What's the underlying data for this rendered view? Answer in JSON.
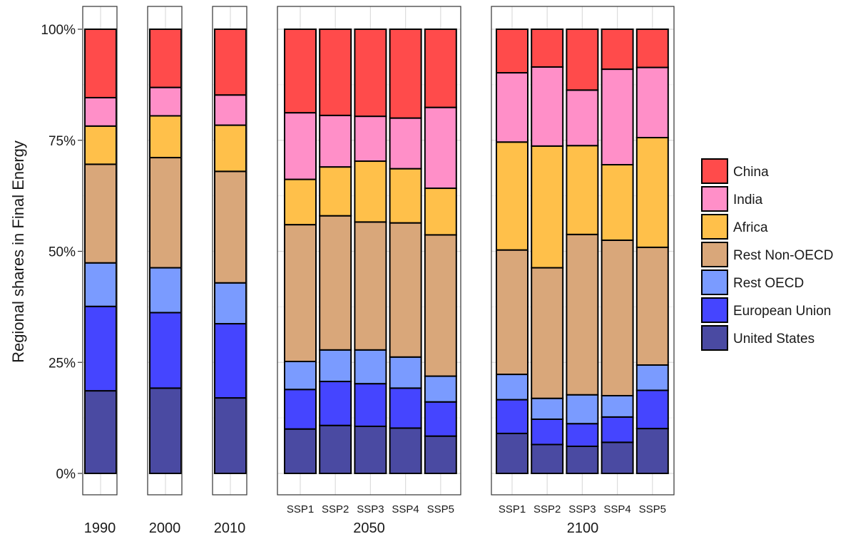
{
  "chart_data": {
    "type": "bar",
    "stacked": true,
    "percent_stacked": true,
    "ylabel": "Regional shares in Final Energy",
    "yticks": [
      "0%",
      "25%",
      "50%",
      "75%",
      "100%"
    ],
    "ylim": [
      0,
      100
    ],
    "grid": true,
    "legend_position": "right",
    "regions": [
      {
        "name": "China",
        "color": "#ff4b4b"
      },
      {
        "name": "India",
        "color": "#ff8fc8"
      },
      {
        "name": "Africa",
        "color": "#ffc04a"
      },
      {
        "name": "Rest Non-OECD",
        "color": "#d9a77a"
      },
      {
        "name": "Rest OECD",
        "color": "#7a9bff"
      },
      {
        "name": "European Union",
        "color": "#4545ff"
      },
      {
        "name": "United States",
        "color": "#4a4aa2"
      }
    ],
    "panels": [
      {
        "label": "1990",
        "bars": [
          {
            "label": "",
            "values": [
              15.4,
              6.4,
              8.6,
              22.2,
              9.8,
              19.0,
              18.6
            ]
          }
        ]
      },
      {
        "label": "2000",
        "bars": [
          {
            "label": "",
            "values": [
              13.1,
              6.4,
              9.4,
              24.8,
              10.1,
              17.0,
              19.2
            ]
          }
        ]
      },
      {
        "label": "2010",
        "bars": [
          {
            "label": "",
            "values": [
              14.8,
              6.8,
              10.4,
              25.1,
              9.2,
              16.7,
              17.0
            ]
          }
        ]
      },
      {
        "label": "2050",
        "bars": [
          {
            "label": "SSP1",
            "values": [
              18.8,
              15.0,
              10.2,
              30.8,
              6.3,
              8.9,
              10.0
            ]
          },
          {
            "label": "SSP2",
            "values": [
              19.4,
              11.6,
              11.0,
              30.2,
              7.1,
              9.9,
              10.8
            ]
          },
          {
            "label": "SSP3",
            "values": [
              19.6,
              10.1,
              13.7,
              28.8,
              7.6,
              9.6,
              10.6
            ]
          },
          {
            "label": "SSP4",
            "values": [
              20.0,
              11.4,
              12.2,
              30.2,
              7.0,
              9.0,
              10.2
            ]
          },
          {
            "label": "SSP5",
            "values": [
              17.6,
              18.2,
              10.5,
              31.8,
              5.8,
              7.7,
              8.4
            ]
          }
        ]
      },
      {
        "label": "2100",
        "bars": [
          {
            "label": "SSP1",
            "values": [
              9.8,
              15.6,
              24.3,
              28.0,
              5.7,
              7.6,
              9.0
            ]
          },
          {
            "label": "SSP2",
            "values": [
              8.5,
              17.8,
              27.4,
              29.4,
              4.7,
              5.7,
              6.5
            ]
          },
          {
            "label": "SSP3",
            "values": [
              13.7,
              12.5,
              20.0,
              36.1,
              6.5,
              5.1,
              6.1
            ]
          },
          {
            "label": "SSP4",
            "values": [
              9.0,
              21.5,
              17.0,
              35.0,
              4.8,
              5.7,
              7.0
            ]
          },
          {
            "label": "SSP5",
            "values": [
              8.6,
              15.8,
              24.7,
              26.5,
              5.7,
              8.6,
              10.1
            ]
          }
        ]
      }
    ]
  }
}
